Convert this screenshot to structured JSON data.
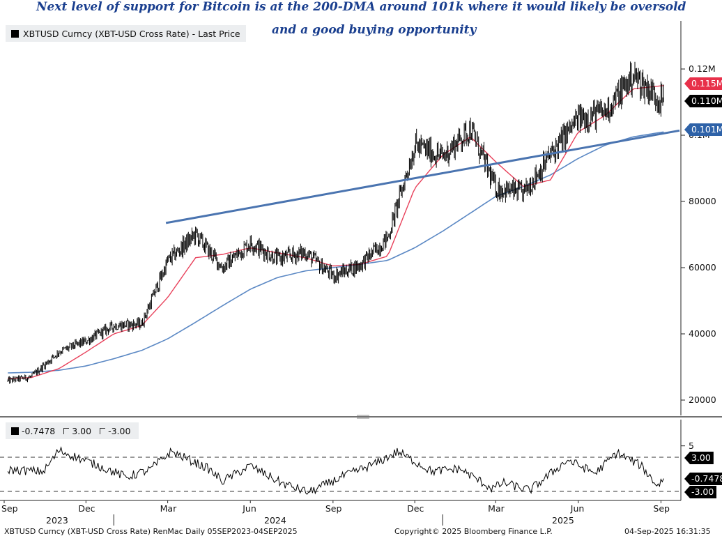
{
  "annotation": {
    "line1": "Next level of support for Bitcoin is at the 200-DMA around 101k where it would likely be oversold",
    "line2": "and a good buying opportunity"
  },
  "legend": {
    "main": "XBTUSD Curncy (XBT-USD Cross Rate) - Last Price",
    "osc_value": "-0.7478",
    "osc_upper": "3.00",
    "osc_lower": "-3.00"
  },
  "tags": {
    "ma_short": "0.115M",
    "last": "0.110M",
    "ma_long": "0.101M",
    "osc_upper": "3.00",
    "osc_last": "-0.7478",
    "osc_lower": "-3.00"
  },
  "colors": {
    "price": "#000000",
    "ma_short": "#e8405a",
    "ma_long": "#5b88c4",
    "trendline": "#4a74b0",
    "tag_red": "#e8304a",
    "tag_blue": "#2e62a8",
    "annotation": "#1a3f8f"
  },
  "footer": {
    "left": "XBTUSD Curncy (XBT-USD Cross Rate) RenMac  Daily 05SEP2023-04SEP2025",
    "center": "Copyright© 2025 Bloomberg Finance L.P.",
    "right": "04-Sep-2025 16:31:35"
  },
  "x_axis": {
    "months": [
      "Sep",
      "Dec",
      "Mar",
      "Jun",
      "Sep",
      "Dec",
      "Mar",
      "Jun",
      "Sep"
    ],
    "years": [
      "2023",
      "2024",
      "2025"
    ]
  },
  "chart_data": [
    {
      "type": "line",
      "title": "XBTUSD Curncy (XBT-USD Cross Rate) - Last Price",
      "y_ticks": [
        "20000",
        "40000",
        "60000",
        "80000",
        "0.1M",
        "0.12M"
      ],
      "ylim": [
        15000,
        125000
      ],
      "x_dates": [
        "2023-09-05",
        "2023-10-01",
        "2023-11-01",
        "2023-12-01",
        "2024-01-01",
        "2024-02-01",
        "2024-03-01",
        "2024-04-01",
        "2024-05-01",
        "2024-06-01",
        "2024-07-01",
        "2024-08-01",
        "2024-09-01",
        "2024-10-01",
        "2024-11-01",
        "2024-12-01",
        "2025-01-01",
        "2025-02-01",
        "2025-03-01",
        "2025-04-01",
        "2025-05-01",
        "2025-06-01",
        "2025-07-01",
        "2025-08-01",
        "2025-09-04"
      ],
      "series": [
        {
          "name": "XBTUSD Curncy (XBT-USD Cross Rate) - Last Price",
          "values": [
            25800,
            27000,
            34600,
            37800,
            42500,
            43000,
            62000,
            70000,
            60000,
            67500,
            62700,
            64600,
            57500,
            60800,
            69000,
            97000,
            93500,
            102000,
            84000,
            82500,
            94000,
            105000,
            107000,
            118000,
            110000
          ]
        },
        {
          "name": "",
          "values": [
            26500,
            26800,
            29500,
            34500,
            40000,
            42500,
            51000,
            63000,
            64000,
            66000,
            64500,
            63000,
            60500,
            61000,
            63500,
            84000,
            94000,
            99500,
            92000,
            84500,
            86500,
            101000,
            106000,
            114000,
            115000
          ]
        },
        {
          "name": "",
          "values": [
            28200,
            28400,
            29000,
            30300,
            32500,
            35000,
            38500,
            43500,
            48500,
            53500,
            57000,
            59000,
            60000,
            61000,
            62200,
            66000,
            71000,
            76500,
            81500,
            84500,
            88000,
            93000,
            97000,
            99500,
            101000
          ]
        }
      ],
      "trendline": {
        "from": [
          "2024-02-28",
          73500
        ],
        "to": [
          "2025-09-04",
          101000
        ]
      }
    },
    {
      "type": "line",
      "title": "",
      "y_ticks": [
        "5",
        "3.00",
        "-3.00"
      ],
      "ylim": [
        -4,
        6
      ],
      "reference_lines": [
        3.0,
        -3.0
      ],
      "x_dates": [
        "2023-09-05",
        "2023-10-15",
        "2023-11-01",
        "2023-12-15",
        "2024-01-15",
        "2024-02-10",
        "2024-03-05",
        "2024-04-15",
        "2024-05-01",
        "2024-06-01",
        "2024-07-05",
        "2024-08-05",
        "2024-09-10",
        "2024-10-20",
        "2024-11-12",
        "2024-12-20",
        "2025-01-20",
        "2025-02-25",
        "2025-03-10",
        "2025-04-08",
        "2025-05-20",
        "2025-06-20",
        "2025-07-14",
        "2025-08-10",
        "2025-08-28",
        "2025-09-04"
      ],
      "series": [
        {
          "name": "",
          "values": [
            0.8,
            0.5,
            4.2,
            1.5,
            -0.5,
            0.8,
            4.0,
            1.0,
            -1.2,
            1.5,
            -1.5,
            -3.2,
            -0.5,
            2.0,
            4.0,
            0.5,
            1.0,
            -2.5,
            -1.5,
            -2.8,
            2.5,
            0.2,
            3.8,
            1.5,
            -2.0,
            -0.7478
          ]
        }
      ]
    }
  ]
}
